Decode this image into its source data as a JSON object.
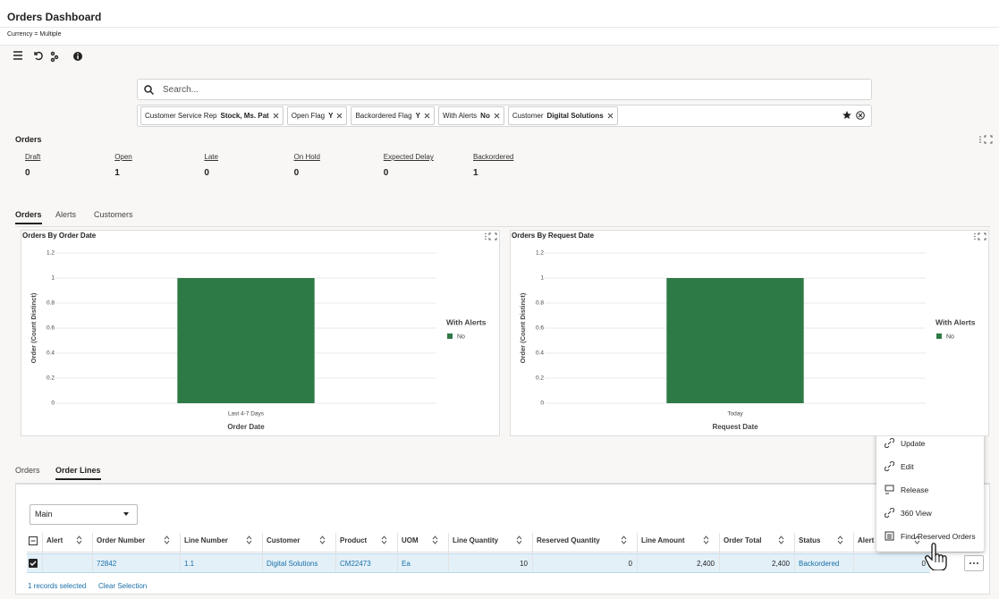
{
  "header": {
    "title": "Orders Dashboard",
    "currency": "Currency = Multiple"
  },
  "search": {
    "placeholder": "Search...",
    "filters": [
      {
        "label": "Customer Service Rep",
        "value": "Stock, Ms. Pat"
      },
      {
        "label": "Open Flag",
        "value": "Y"
      },
      {
        "label": "Backordered Flag",
        "value": "Y"
      },
      {
        "label": "With Alerts",
        "value": "No"
      },
      {
        "label": "Customer",
        "value": "Digital Solutions"
      }
    ]
  },
  "orders_summary": {
    "title": "Orders",
    "metrics": [
      {
        "label": "Draft",
        "value": 0
      },
      {
        "label": "Open",
        "value": 1
      },
      {
        "label": "Late",
        "value": 0
      },
      {
        "label": "On Hold",
        "value": 0
      },
      {
        "label": "Expected Delay",
        "value": 0
      },
      {
        "label": "Backordered",
        "value": 1
      }
    ]
  },
  "tabs": [
    "Orders",
    "Alerts",
    "Customers"
  ],
  "chart_data": [
    {
      "type": "bar",
      "title": "Orders By Order Date",
      "x_label": "Order Date",
      "y_label": "Order (Count Distinct)",
      "categories": [
        "Last 4-7 Days"
      ],
      "legend_title": "With Alerts",
      "series": [
        {
          "name": "No",
          "color": "#2e7a47",
          "values": [
            1
          ]
        }
      ],
      "ylim": [
        0,
        1.2
      ],
      "yticks": [
        0,
        0.2,
        0.4,
        0.6,
        0.8,
        1,
        1.2
      ],
      "grid": true
    },
    {
      "type": "bar",
      "title": "Orders By Request Date",
      "x_label": "Request Date",
      "y_label": "Order (Count Distinct)",
      "categories": [
        "Today"
      ],
      "legend_title": "With Alerts",
      "series": [
        {
          "name": "No",
          "color": "#2e7a47",
          "values": [
            1
          ]
        }
      ],
      "ylim": [
        0,
        1.2
      ],
      "yticks": [
        0,
        0.2,
        0.4,
        0.6,
        0.8,
        1,
        1.2
      ],
      "grid": true
    }
  ],
  "lower_tabs": [
    "Orders",
    "Order Lines"
  ],
  "table": {
    "view": "Main",
    "columns": [
      "Alert",
      "Order Number",
      "Line Number",
      "Customer",
      "Product",
      "UOM",
      "Line Quantity",
      "Reserved Quantity",
      "Line Amount",
      "Order Total",
      "Status",
      "Alert"
    ],
    "rows": [
      [
        null,
        "72842",
        "1.1",
        "Digital Solutions",
        "CM22473",
        "Ea",
        "10",
        "0",
        "2,400",
        "2,400",
        "Backordered",
        "0"
      ]
    ],
    "selected": "1 records selected",
    "clear": "Clear Selection"
  },
  "context_menu": [
    "Update",
    "Edit",
    "Release",
    "360 View",
    "Find Reserved Orders"
  ]
}
